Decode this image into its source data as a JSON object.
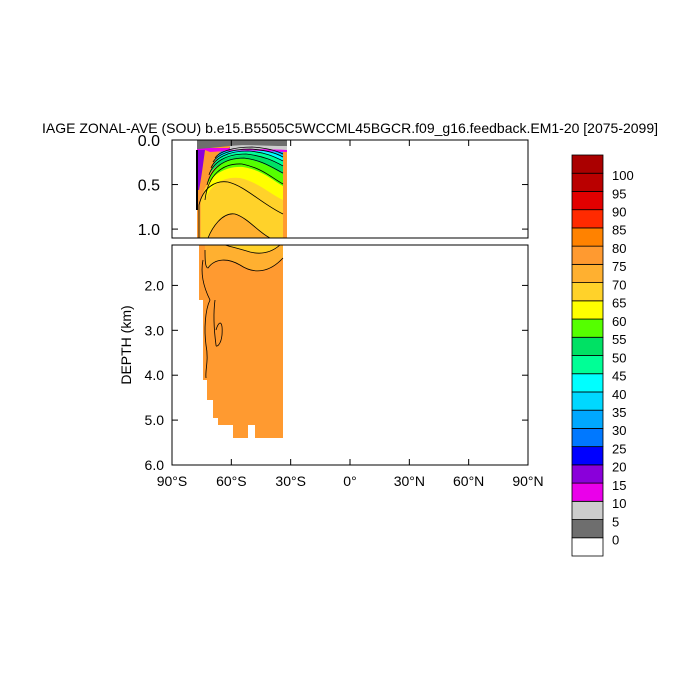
{
  "chart_data": {
    "type": "heatmap",
    "title": "IAGE ZONAL-AVE (SOU) b.e15.B5505C5WCCML45BGCR.f09_g16.feedback.EM1-20 [2075-2099]",
    "ylabel": "DEPTH (km)",
    "xlabel": "",
    "xlim": [
      -90,
      90
    ],
    "ylim_top_panel": [
      0.0,
      1.1
    ],
    "ylim_bottom_panel": [
      1.1,
      6.0
    ],
    "x_ticks": [
      "90°S",
      "60°S",
      "30°S",
      "0°",
      "30°N",
      "60°N",
      "90°N"
    ],
    "x_tick_values": [
      -90,
      -60,
      -30,
      0,
      30,
      60,
      90
    ],
    "y_ticks_top": [
      "0.0",
      "0.5",
      "1.0"
    ],
    "y_tick_values_top": [
      0.0,
      0.5,
      1.0
    ],
    "y_ticks_bottom": [
      "2.0",
      "3.0",
      "4.0",
      "5.0",
      "6.0"
    ],
    "y_tick_values_bottom": [
      2.0,
      3.0,
      4.0,
      5.0,
      6.0
    ],
    "colorbar": {
      "levels": [
        0,
        5,
        10,
        15,
        20,
        25,
        30,
        35,
        40,
        45,
        50,
        55,
        60,
        65,
        70,
        75,
        80,
        85,
        90,
        95,
        100
      ],
      "colors": [
        "#ffffff",
        "#6e6e6e",
        "#cdcdcd",
        "#ea00ea",
        "#8a00da",
        "#0000ff",
        "#0078ff",
        "#00a8ff",
        "#00d8ff",
        "#00ffff",
        "#00ff96",
        "#00e164",
        "#55ff00",
        "#ffff00",
        "#ffd22a",
        "#ffb030",
        "#ff9a30",
        "#ff8200",
        "#ff2a00",
        "#e20000",
        "#ba0000"
      ],
      "labels": [
        "0",
        "5",
        "10",
        "15",
        "20",
        "25",
        "30",
        "35",
        "40",
        "45",
        "50",
        "55",
        "60",
        "65",
        "70",
        "75",
        "80",
        "85",
        "90",
        "95",
        "100"
      ]
    },
    "field_description": {
      "domain_lat_range": [
        -78,
        -34
      ],
      "max_depth_km": 5.35,
      "dominant_value": 80,
      "surface_value": 5,
      "grid": false
    }
  }
}
